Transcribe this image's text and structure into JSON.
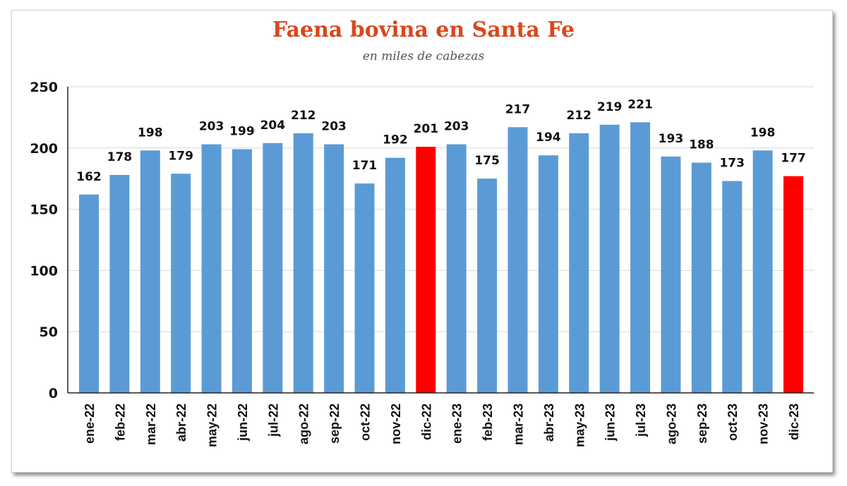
{
  "chart_data": {
    "type": "bar",
    "title": "Faena bovina en Santa Fe",
    "subtitle": "en miles de cabezas",
    "xlabel": "",
    "ylabel": "",
    "ylim": [
      0,
      250
    ],
    "yticks": [
      "0",
      "50",
      "100",
      "150",
      "200",
      "250"
    ],
    "grid": true,
    "categories": [
      "ene-22",
      "feb-22",
      "mar-22",
      "abr-22",
      "may-22",
      "jun-22",
      "jul-22",
      "ago-22",
      "sep-22",
      "oct-22",
      "nov-22",
      "dic-22",
      "ene-23",
      "feb-23",
      "mar-23",
      "abr-23",
      "may-23",
      "jun-23",
      "jul-23",
      "ago-23",
      "sep-23",
      "oct-23",
      "nov-23",
      "dic-23"
    ],
    "values": [
      162,
      178,
      198,
      179,
      203,
      199,
      204,
      212,
      203,
      171,
      192,
      201,
      203,
      175,
      217,
      194,
      212,
      219,
      221,
      193,
      188,
      173,
      198,
      177
    ],
    "highlight": [
      "dic-22",
      "dic-23"
    ],
    "colors": {
      "bar": "#5b9bd5",
      "highlight": "#ff0000",
      "title": "#d9471e"
    }
  }
}
